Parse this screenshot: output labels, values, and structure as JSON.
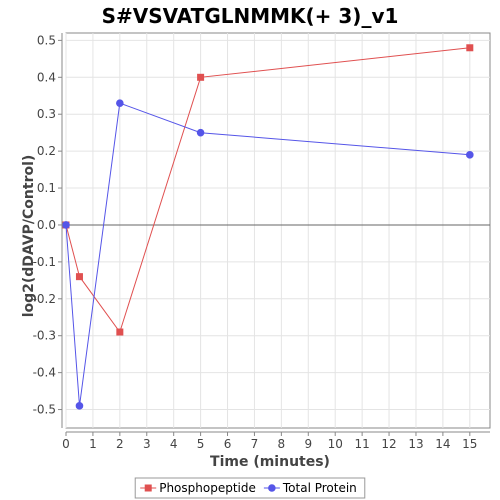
{
  "chart_data": {
    "type": "line",
    "title": "S#VSVATGLNMMK(+ 3)_v1",
    "xlabel": "Time (minutes)",
    "ylabel": "log2(dDAVP/Control)",
    "xlim": [
      0,
      15.75
    ],
    "ylim": [
      -0.55,
      0.52
    ],
    "x_ticks": [
      0,
      1,
      2,
      3,
      4,
      5,
      6,
      7,
      8,
      9,
      10,
      11,
      12,
      13,
      14,
      15
    ],
    "y_ticks": [
      -0.5,
      -0.4,
      -0.3,
      -0.2,
      -0.1,
      0.0,
      0.1,
      0.2,
      0.3,
      0.4,
      0.5
    ],
    "y_tick_labels": [
      "-0.5",
      "-0.4",
      "-0.3",
      "-0.2",
      "-0.1",
      "0.0",
      "0.1",
      "0.2",
      "0.3",
      "0.4",
      "0.5"
    ],
    "legend_position": "bottom",
    "series": [
      {
        "name": "Phosphopeptide",
        "color": "#e05050",
        "marker": "square",
        "x": [
          0,
          0.5,
          2,
          5,
          15
        ],
        "y": [
          0.0,
          -0.14,
          -0.29,
          0.4,
          0.48
        ]
      },
      {
        "name": "Total Protein",
        "color": "#5555e8",
        "marker": "circle",
        "x": [
          0,
          0.5,
          2,
          5,
          15
        ],
        "y": [
          0.0,
          -0.49,
          0.33,
          0.25,
          0.19
        ]
      }
    ]
  }
}
